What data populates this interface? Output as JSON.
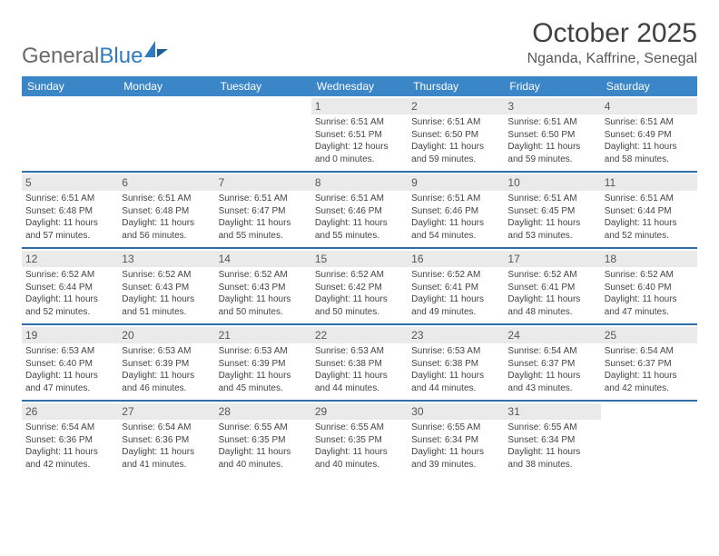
{
  "brand": {
    "part1": "General",
    "part2": "Blue"
  },
  "title": {
    "month": "October 2025",
    "location": "Nganda, Kaffrine, Senegal"
  },
  "colors": {
    "header_bg": "#3b86c7",
    "header_text": "#ffffff",
    "week_divider": "#2f6ea8",
    "daynum_bg": "#eaeaea",
    "logo_gray": "#6a6a6a",
    "logo_blue": "#2f7bbf"
  },
  "daynames": [
    "Sunday",
    "Monday",
    "Tuesday",
    "Wednesday",
    "Thursday",
    "Friday",
    "Saturday"
  ],
  "weeks": [
    [
      {
        "num": "",
        "sr": "",
        "ss": "",
        "dl": ""
      },
      {
        "num": "",
        "sr": "",
        "ss": "",
        "dl": ""
      },
      {
        "num": "",
        "sr": "",
        "ss": "",
        "dl": ""
      },
      {
        "num": "1",
        "sr": "Sunrise: 6:51 AM",
        "ss": "Sunset: 6:51 PM",
        "dl": "Daylight: 12 hours and 0 minutes."
      },
      {
        "num": "2",
        "sr": "Sunrise: 6:51 AM",
        "ss": "Sunset: 6:50 PM",
        "dl": "Daylight: 11 hours and 59 minutes."
      },
      {
        "num": "3",
        "sr": "Sunrise: 6:51 AM",
        "ss": "Sunset: 6:50 PM",
        "dl": "Daylight: 11 hours and 59 minutes."
      },
      {
        "num": "4",
        "sr": "Sunrise: 6:51 AM",
        "ss": "Sunset: 6:49 PM",
        "dl": "Daylight: 11 hours and 58 minutes."
      }
    ],
    [
      {
        "num": "5",
        "sr": "Sunrise: 6:51 AM",
        "ss": "Sunset: 6:48 PM",
        "dl": "Daylight: 11 hours and 57 minutes."
      },
      {
        "num": "6",
        "sr": "Sunrise: 6:51 AM",
        "ss": "Sunset: 6:48 PM",
        "dl": "Daylight: 11 hours and 56 minutes."
      },
      {
        "num": "7",
        "sr": "Sunrise: 6:51 AM",
        "ss": "Sunset: 6:47 PM",
        "dl": "Daylight: 11 hours and 55 minutes."
      },
      {
        "num": "8",
        "sr": "Sunrise: 6:51 AM",
        "ss": "Sunset: 6:46 PM",
        "dl": "Daylight: 11 hours and 55 minutes."
      },
      {
        "num": "9",
        "sr": "Sunrise: 6:51 AM",
        "ss": "Sunset: 6:46 PM",
        "dl": "Daylight: 11 hours and 54 minutes."
      },
      {
        "num": "10",
        "sr": "Sunrise: 6:51 AM",
        "ss": "Sunset: 6:45 PM",
        "dl": "Daylight: 11 hours and 53 minutes."
      },
      {
        "num": "11",
        "sr": "Sunrise: 6:51 AM",
        "ss": "Sunset: 6:44 PM",
        "dl": "Daylight: 11 hours and 52 minutes."
      }
    ],
    [
      {
        "num": "12",
        "sr": "Sunrise: 6:52 AM",
        "ss": "Sunset: 6:44 PM",
        "dl": "Daylight: 11 hours and 52 minutes."
      },
      {
        "num": "13",
        "sr": "Sunrise: 6:52 AM",
        "ss": "Sunset: 6:43 PM",
        "dl": "Daylight: 11 hours and 51 minutes."
      },
      {
        "num": "14",
        "sr": "Sunrise: 6:52 AM",
        "ss": "Sunset: 6:43 PM",
        "dl": "Daylight: 11 hours and 50 minutes."
      },
      {
        "num": "15",
        "sr": "Sunrise: 6:52 AM",
        "ss": "Sunset: 6:42 PM",
        "dl": "Daylight: 11 hours and 50 minutes."
      },
      {
        "num": "16",
        "sr": "Sunrise: 6:52 AM",
        "ss": "Sunset: 6:41 PM",
        "dl": "Daylight: 11 hours and 49 minutes."
      },
      {
        "num": "17",
        "sr": "Sunrise: 6:52 AM",
        "ss": "Sunset: 6:41 PM",
        "dl": "Daylight: 11 hours and 48 minutes."
      },
      {
        "num": "18",
        "sr": "Sunrise: 6:52 AM",
        "ss": "Sunset: 6:40 PM",
        "dl": "Daylight: 11 hours and 47 minutes."
      }
    ],
    [
      {
        "num": "19",
        "sr": "Sunrise: 6:53 AM",
        "ss": "Sunset: 6:40 PM",
        "dl": "Daylight: 11 hours and 47 minutes."
      },
      {
        "num": "20",
        "sr": "Sunrise: 6:53 AM",
        "ss": "Sunset: 6:39 PM",
        "dl": "Daylight: 11 hours and 46 minutes."
      },
      {
        "num": "21",
        "sr": "Sunrise: 6:53 AM",
        "ss": "Sunset: 6:39 PM",
        "dl": "Daylight: 11 hours and 45 minutes."
      },
      {
        "num": "22",
        "sr": "Sunrise: 6:53 AM",
        "ss": "Sunset: 6:38 PM",
        "dl": "Daylight: 11 hours and 44 minutes."
      },
      {
        "num": "23",
        "sr": "Sunrise: 6:53 AM",
        "ss": "Sunset: 6:38 PM",
        "dl": "Daylight: 11 hours and 44 minutes."
      },
      {
        "num": "24",
        "sr": "Sunrise: 6:54 AM",
        "ss": "Sunset: 6:37 PM",
        "dl": "Daylight: 11 hours and 43 minutes."
      },
      {
        "num": "25",
        "sr": "Sunrise: 6:54 AM",
        "ss": "Sunset: 6:37 PM",
        "dl": "Daylight: 11 hours and 42 minutes."
      }
    ],
    [
      {
        "num": "26",
        "sr": "Sunrise: 6:54 AM",
        "ss": "Sunset: 6:36 PM",
        "dl": "Daylight: 11 hours and 42 minutes."
      },
      {
        "num": "27",
        "sr": "Sunrise: 6:54 AM",
        "ss": "Sunset: 6:36 PM",
        "dl": "Daylight: 11 hours and 41 minutes."
      },
      {
        "num": "28",
        "sr": "Sunrise: 6:55 AM",
        "ss": "Sunset: 6:35 PM",
        "dl": "Daylight: 11 hours and 40 minutes."
      },
      {
        "num": "29",
        "sr": "Sunrise: 6:55 AM",
        "ss": "Sunset: 6:35 PM",
        "dl": "Daylight: 11 hours and 40 minutes."
      },
      {
        "num": "30",
        "sr": "Sunrise: 6:55 AM",
        "ss": "Sunset: 6:34 PM",
        "dl": "Daylight: 11 hours and 39 minutes."
      },
      {
        "num": "31",
        "sr": "Sunrise: 6:55 AM",
        "ss": "Sunset: 6:34 PM",
        "dl": "Daylight: 11 hours and 38 minutes."
      },
      {
        "num": "",
        "sr": "",
        "ss": "",
        "dl": ""
      }
    ]
  ]
}
